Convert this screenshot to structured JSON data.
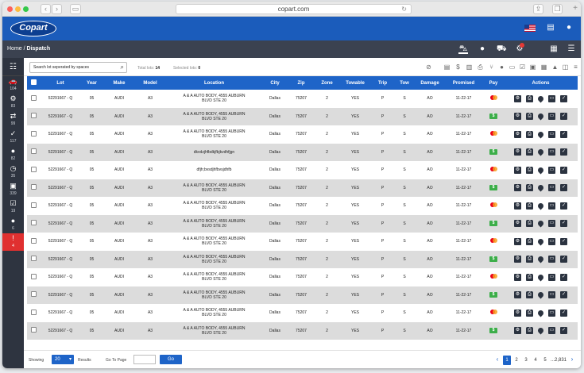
{
  "browser": {
    "url": "copart.com"
  },
  "header": {
    "logo": "Copart"
  },
  "breadcrumb": {
    "home": "Home",
    "separator": " / ",
    "current": "Dispatch"
  },
  "rail": {
    "items": [
      {
        "icon": "car-stack-icon",
        "glyph": "🚗",
        "count": "104"
      },
      {
        "icon": "car-group-icon",
        "glyph": "⚙",
        "count": "83"
      },
      {
        "icon": "car-swap-icon",
        "glyph": "⇄",
        "count": "99"
      },
      {
        "icon": "car-check-icon",
        "glyph": "✓",
        "count": "117"
      },
      {
        "icon": "location-pin-icon",
        "glyph": "●",
        "count": "82"
      },
      {
        "icon": "clock-icon",
        "glyph": "◷",
        "count": "35"
      },
      {
        "icon": "bus-icon",
        "glyph": "▣",
        "count": "339"
      },
      {
        "icon": "calendar-check-icon",
        "glyph": "☑",
        "count": "19"
      },
      {
        "icon": "map-pin-icon",
        "glyph": "●",
        "count": "6"
      },
      {
        "icon": "alert-icon",
        "glyph": "!",
        "count": "4",
        "alert": true
      }
    ]
  },
  "toolbar": {
    "search_placeholder": "Search lot seperated by spaces",
    "total_label": "Total lots:",
    "total_value": "14",
    "selected_label": "Selected lots:",
    "selected_value": "0"
  },
  "table": {
    "columns": [
      "Lot",
      "Year",
      "Make",
      "Model",
      "Location",
      "City",
      "Zip",
      "Zone",
      "Towable",
      "Trip",
      "Tow",
      "Damage",
      "Promised",
      "Pay",
      "Actions"
    ],
    "rows": [
      {
        "lot": "52291667 - Q",
        "year": "05",
        "make": "AUDI",
        "model": "A3",
        "loc1": "A & A AUTO BODY, 4555 AUBURN",
        "loc2": "BLVD STE 20",
        "city": "Dallas",
        "zip": "75207",
        "zone": "2",
        "towable": "YES",
        "trip": "P",
        "tow": "S",
        "damage": "AO",
        "promised": "11-22-17",
        "pay": "card"
      },
      {
        "lot": "52291667 - Q",
        "year": "05",
        "make": "AUDI",
        "model": "A3",
        "loc1": "A & A AUTO BODY, 4555 AUBURN",
        "loc2": "BLVD STE 20",
        "city": "Dallas",
        "zip": "75207",
        "zone": "2",
        "towable": "YES",
        "trip": "P",
        "tow": "S",
        "damage": "AO",
        "promised": "11-22-17",
        "pay": "cash"
      },
      {
        "lot": "52291667 - Q",
        "year": "05",
        "make": "AUDI",
        "model": "A3",
        "loc1": "A & A AUTO BODY, 4555 AUBURN",
        "loc2": "BLVD STE 20",
        "city": "Dallas",
        "zip": "75207",
        "zone": "2",
        "towable": "YES",
        "trip": "P",
        "tow": "S",
        "damage": "AO",
        "promised": "11-22-17",
        "pay": "card"
      },
      {
        "lot": "52291667 - Q",
        "year": "05",
        "make": "AUDI",
        "model": "A3",
        "loc1": "dkvdzjhfbdkjfbjkvdhfjgn",
        "loc2": "",
        "city": "Dallas",
        "zip": "75207",
        "zone": "2",
        "towable": "YES",
        "trip": "P",
        "tow": "S",
        "damage": "AO",
        "promised": "11-22-17",
        "pay": "cash"
      },
      {
        "lot": "52291667 - Q",
        "year": "05",
        "make": "AUDI",
        "model": "A3",
        "loc1": "dfjh;bvsdjhfbvsjdhfb",
        "loc2": "",
        "city": "Dallas",
        "zip": "75207",
        "zone": "2",
        "towable": "YES",
        "trip": "P",
        "tow": "S",
        "damage": "AO",
        "promised": "11-22-17",
        "pay": "card"
      },
      {
        "lot": "52291667 - Q",
        "year": "05",
        "make": "AUDI",
        "model": "A3",
        "loc1": "A & A AUTO BODY, 4555 AUBURN",
        "loc2": "BLVD STE 20",
        "city": "Dallas",
        "zip": "75207",
        "zone": "2",
        "towable": "YES",
        "trip": "P",
        "tow": "S",
        "damage": "AO",
        "promised": "11-22-17",
        "pay": "cash"
      },
      {
        "lot": "52291667 - Q",
        "year": "05",
        "make": "AUDI",
        "model": "A3",
        "loc1": "A & A AUTO BODY, 4555 AUBURN",
        "loc2": "BLVD STE 20",
        "city": "Dallas",
        "zip": "75207",
        "zone": "2",
        "towable": "YES",
        "trip": "P",
        "tow": "S",
        "damage": "AO",
        "promised": "11-22-17",
        "pay": "card"
      },
      {
        "lot": "52291667 - Q",
        "year": "05",
        "make": "AUDI",
        "model": "A3",
        "loc1": "A & A AUTO BODY, 4555 AUBURN",
        "loc2": "BLVD STE 20",
        "city": "Dallas",
        "zip": "75207",
        "zone": "2",
        "towable": "YES",
        "trip": "P",
        "tow": "S",
        "damage": "AO",
        "promised": "11-22-17",
        "pay": "cash"
      },
      {
        "lot": "52291667 - Q",
        "year": "05",
        "make": "AUDI",
        "model": "A3",
        "loc1": "A & A AUTO BODY, 4555 AUBURN",
        "loc2": "BLVD STE 20",
        "city": "Dallas",
        "zip": "75207",
        "zone": "2",
        "towable": "YES",
        "trip": "P",
        "tow": "S",
        "damage": "AO",
        "promised": "11-22-17",
        "pay": "card"
      },
      {
        "lot": "52291667 - Q",
        "year": "05",
        "make": "AUDI",
        "model": "A3",
        "loc1": "A & A AUTO BODY, 4555 AUBURN",
        "loc2": "BLVD STE 20",
        "city": "Dallas",
        "zip": "75207",
        "zone": "2",
        "towable": "YES",
        "trip": "P",
        "tow": "S",
        "damage": "AO",
        "promised": "11-22-17",
        "pay": "cash"
      },
      {
        "lot": "52291667 - Q",
        "year": "05",
        "make": "AUDI",
        "model": "A3",
        "loc1": "A & A AUTO BODY, 4555 AUBURN",
        "loc2": "BLVD STE 20",
        "city": "Dallas",
        "zip": "75207",
        "zone": "2",
        "towable": "YES",
        "trip": "P",
        "tow": "S",
        "damage": "AO",
        "promised": "11-22-17",
        "pay": "card"
      },
      {
        "lot": "52291667 - Q",
        "year": "05",
        "make": "AUDI",
        "model": "A3",
        "loc1": "A & A AUTO BODY, 4555 AUBURN",
        "loc2": "BLVD STE 20",
        "city": "Dallas",
        "zip": "75207",
        "zone": "2",
        "towable": "YES",
        "trip": "P",
        "tow": "S",
        "damage": "AO",
        "promised": "11-22-17",
        "pay": "cash"
      },
      {
        "lot": "52291667 - Q",
        "year": "05",
        "make": "AUDI",
        "model": "A3",
        "loc1": "A & A AUTO BODY, 4555 AUBURN",
        "loc2": "BLVD STE 20",
        "city": "Dallas",
        "zip": "75207",
        "zone": "2",
        "towable": "YES",
        "trip": "P",
        "tow": "S",
        "damage": "AO",
        "promised": "11-22-17",
        "pay": "card"
      },
      {
        "lot": "52291667 - Q",
        "year": "05",
        "make": "AUDI",
        "model": "A3",
        "loc1": "A & A AUTO BODY, 4555 AUBURN",
        "loc2": "BLVD STE 20",
        "city": "Dallas",
        "zip": "75207",
        "zone": "2",
        "towable": "YES",
        "trip": "P",
        "tow": "S",
        "damage": "AO",
        "promised": "11-22-17",
        "pay": "cash"
      }
    ],
    "cash_label": "$"
  },
  "footer": {
    "showing_label": "Showing",
    "page_size": "20",
    "results_label": "Results",
    "goto_label": "Go To Page",
    "go_label": "Go",
    "pages": [
      "1",
      "2",
      "3",
      "4",
      "5",
      "...2,831"
    ],
    "current_page": "1",
    "prev": "‹",
    "next": "›"
  },
  "colors": {
    "brand": "#1b5cbb",
    "header_row": "#1e64c8",
    "subbar": "#3b4250",
    "rail": "#2e3440",
    "alert": "#e03030",
    "cash": "#3cae49"
  }
}
